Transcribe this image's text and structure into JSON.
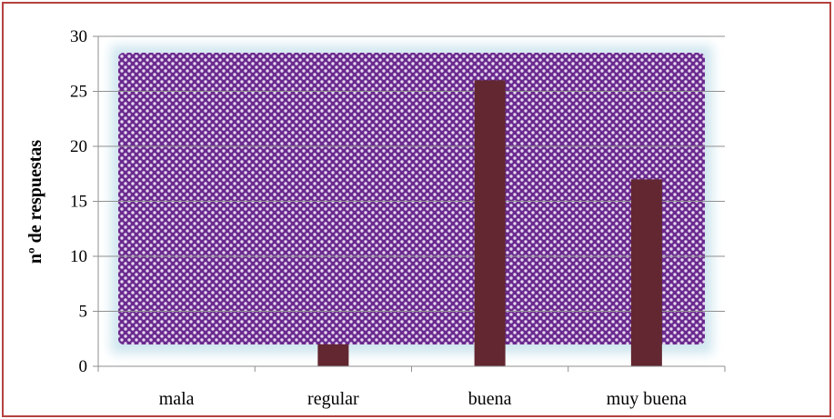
{
  "chart_data": {
    "type": "bar",
    "categories": [
      "mala",
      "regular",
      "buena",
      "muy buena"
    ],
    "values": [
      0,
      2,
      26,
      17
    ],
    "title": "",
    "xlabel": "",
    "ylabel": "nº de respuestas",
    "ylim": [
      0,
      30
    ],
    "yticks": [
      "0",
      "5",
      "10",
      "15",
      "20",
      "25",
      "30"
    ],
    "grid": true,
    "legend": "none",
    "colors": {
      "bar": "#622730",
      "border": "#b5413f",
      "plot_pattern_dark": "#6a2a8e",
      "plot_pattern_light": "#e6d8f0",
      "plot_glow": "#cfe6ef",
      "gridline": "#8f8f8f"
    }
  }
}
